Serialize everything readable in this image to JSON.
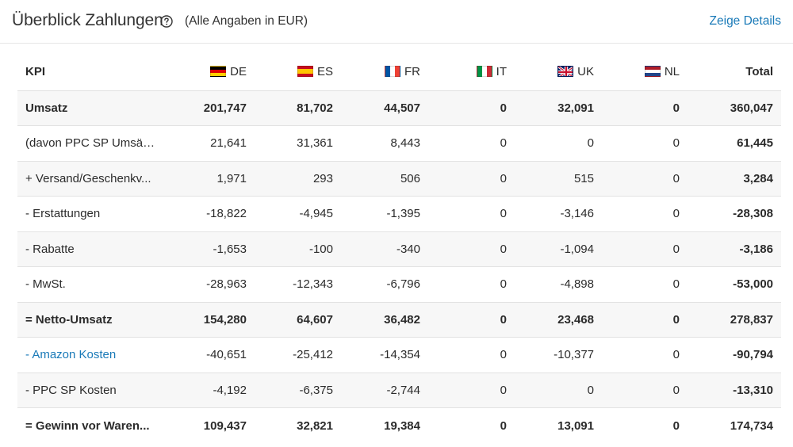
{
  "header": {
    "title": "Überblick Zahlungen",
    "subtitle": "(Alle Angaben in EUR)",
    "details_link": "Zeige Details"
  },
  "columns": {
    "kpi": "KPI",
    "countries": [
      {
        "code": "DE",
        "flag_icon": "germany-flag-icon"
      },
      {
        "code": "ES",
        "flag_icon": "spain-flag-icon"
      },
      {
        "code": "FR",
        "flag_icon": "france-flag-icon"
      },
      {
        "code": "IT",
        "flag_icon": "italy-flag-icon"
      },
      {
        "code": "UK",
        "flag_icon": "uk-flag-icon"
      },
      {
        "code": "NL",
        "flag_icon": "netherlands-flag-icon"
      }
    ],
    "total": "Total"
  },
  "rows": [
    {
      "label": "Umsatz",
      "values": [
        "201,747",
        "81,702",
        "44,507",
        "0",
        "32,091",
        "0"
      ],
      "total": "360,047"
    },
    {
      "label": "(davon PPC SP Umsätze)",
      "values": [
        "21,641",
        "31,361",
        "8,443",
        "0",
        "0",
        "0"
      ],
      "total": "61,445"
    },
    {
      "label": "+ Versand/Geschenkv...",
      "values": [
        "1,971",
        "293",
        "506",
        "0",
        "515",
        "0"
      ],
      "total": "3,284"
    },
    {
      "label": "- Erstattungen",
      "values": [
        "-18,822",
        "-4,945",
        "-1,395",
        "0",
        "-3,146",
        "0"
      ],
      "total": "-28,308"
    },
    {
      "label": "- Rabatte",
      "values": [
        "-1,653",
        "-100",
        "-340",
        "0",
        "-1,094",
        "0"
      ],
      "total": "-3,186"
    },
    {
      "label": "- MwSt.",
      "values": [
        "-28,963",
        "-12,343",
        "-6,796",
        "0",
        "-4,898",
        "0"
      ],
      "total": "-53,000"
    },
    {
      "label": "= Netto-Umsatz",
      "values": [
        "154,280",
        "64,607",
        "36,482",
        "0",
        "23,468",
        "0"
      ],
      "total": "278,837"
    },
    {
      "label": "- Amazon Kosten",
      "values": [
        "-40,651",
        "-25,412",
        "-14,354",
        "0",
        "-10,377",
        "0"
      ],
      "total": "-90,794"
    },
    {
      "label": "- PPC SP Kosten",
      "values": [
        "-4,192",
        "-6,375",
        "-2,744",
        "0",
        "0",
        "0"
      ],
      "total": "-13,310"
    },
    {
      "label": "= Gewinn vor Waren...",
      "values": [
        "109,437",
        "32,821",
        "19,384",
        "0",
        "13,091",
        "0"
      ],
      "total": "174,734"
    }
  ],
  "colors": {
    "link": "#1a7ab8",
    "row_alt": "#f7f7f7",
    "border": "#e2e2e2"
  }
}
